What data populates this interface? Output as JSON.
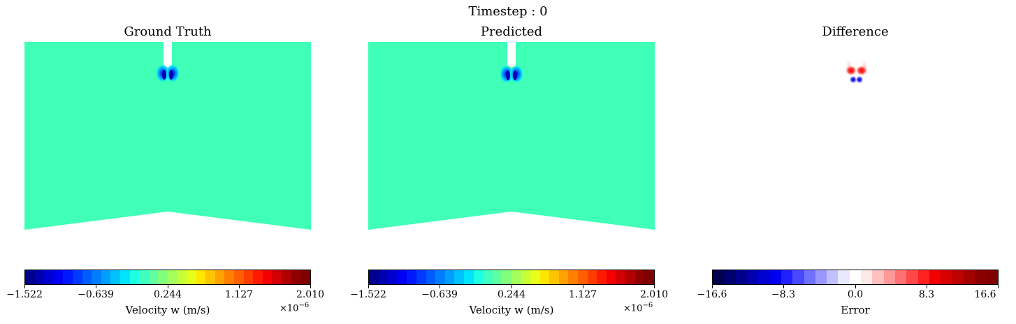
{
  "figure": {
    "suptitle": "Timestep : 0"
  },
  "chart_data": [
    {
      "type": "heatmap",
      "title": "Ground Truth",
      "colormap": "jet",
      "colorbar": {
        "label": "Velocity w (m/s)",
        "ticks": [
          "−1.522",
          "−0.639",
          "0.244",
          "1.127",
          "2.010"
        ],
        "range": [
          -1.522,
          2.01
        ],
        "offset_text": "×10",
        "offset_exponent": "−6"
      },
      "background_value": 0.244,
      "background_color": "#40ffb6",
      "features": [
        "inlet jet at top center",
        "blue low-velocity lobes below inlet"
      ]
    },
    {
      "type": "heatmap",
      "title": "Predicted",
      "colormap": "jet",
      "colorbar": {
        "label": "Velocity w (m/s)",
        "ticks": [
          "−1.522",
          "−0.639",
          "0.244",
          "1.127",
          "2.010"
        ],
        "range": [
          -1.522,
          2.01
        ],
        "offset_text": "×10",
        "offset_exponent": "−6"
      },
      "background_value": 0.244,
      "background_color": "#40ffb6",
      "features": [
        "inlet jet at top center",
        "blue low-velocity lobes below inlet"
      ]
    },
    {
      "type": "heatmap",
      "title": "Difference",
      "colormap": "seismic",
      "colorbar": {
        "label": "Error",
        "ticks": [
          "−16.6",
          "−8.3",
          "0.0",
          "8.3",
          "16.6"
        ],
        "range": [
          -16.6,
          16.6
        ]
      },
      "background_value": 0.0,
      "features": [
        "red positive error lobes",
        "blue negative error lobes below inlet"
      ]
    }
  ],
  "colors": {
    "jet": [
      "#00008f",
      "#0000b0",
      "#0000d2",
      "#0000f5",
      "#0018ff",
      "#0039ff",
      "#005cff",
      "#007dff",
      "#009fff",
      "#00c2ff",
      "#00e4ff",
      "#1dffe2",
      "#40ffbf",
      "#60ff9f",
      "#82ff7d",
      "#a4ff5b",
      "#c5ff3a",
      "#e6ff19",
      "#ffe600",
      "#ffc400",
      "#ffa200",
      "#ff8000",
      "#ff5f00",
      "#ff3c00",
      "#ff1900",
      "#f40000",
      "#d20000",
      "#b00000",
      "#8e0000",
      "#800000"
    ],
    "seismic": [
      "#00004c",
      "#00006c",
      "#00008d",
      "#0000ae",
      "#0000cf",
      "#0000f0",
      "#2020ff",
      "#4848ff",
      "#7070ff",
      "#9898ff",
      "#c0c0ff",
      "#e8e8ff",
      "#ffffff",
      "#ffe8e8",
      "#ffc0c0",
      "#ff9898",
      "#ff7070",
      "#ff4848",
      "#ff2020",
      "#f00000",
      "#d60000",
      "#bd0000",
      "#a30000",
      "#8a0000",
      "#800000"
    ]
  }
}
